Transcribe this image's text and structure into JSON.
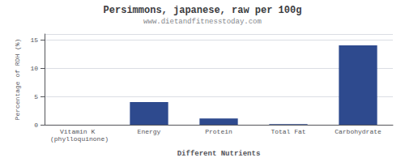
{
  "chart_data": {
    "type": "bar",
    "title": "Persimmons, japanese, raw per 100g",
    "subtitle": "www.dietandfitnesstoday.com",
    "xlabel": "Different Nutrients",
    "ylabel": "Percentage of RDH (%)",
    "categories": [
      "Vitamin K (phylloquinone)",
      "Energy",
      "Protein",
      "Total Fat",
      "Carbohydrate"
    ],
    "values": [
      0.0,
      4.0,
      1.1,
      0.1,
      14.0
    ],
    "color": "#2e4a8e",
    "ylim": [
      0,
      16
    ],
    "yticks": [
      0,
      5,
      10,
      15
    ],
    "grid": true
  }
}
